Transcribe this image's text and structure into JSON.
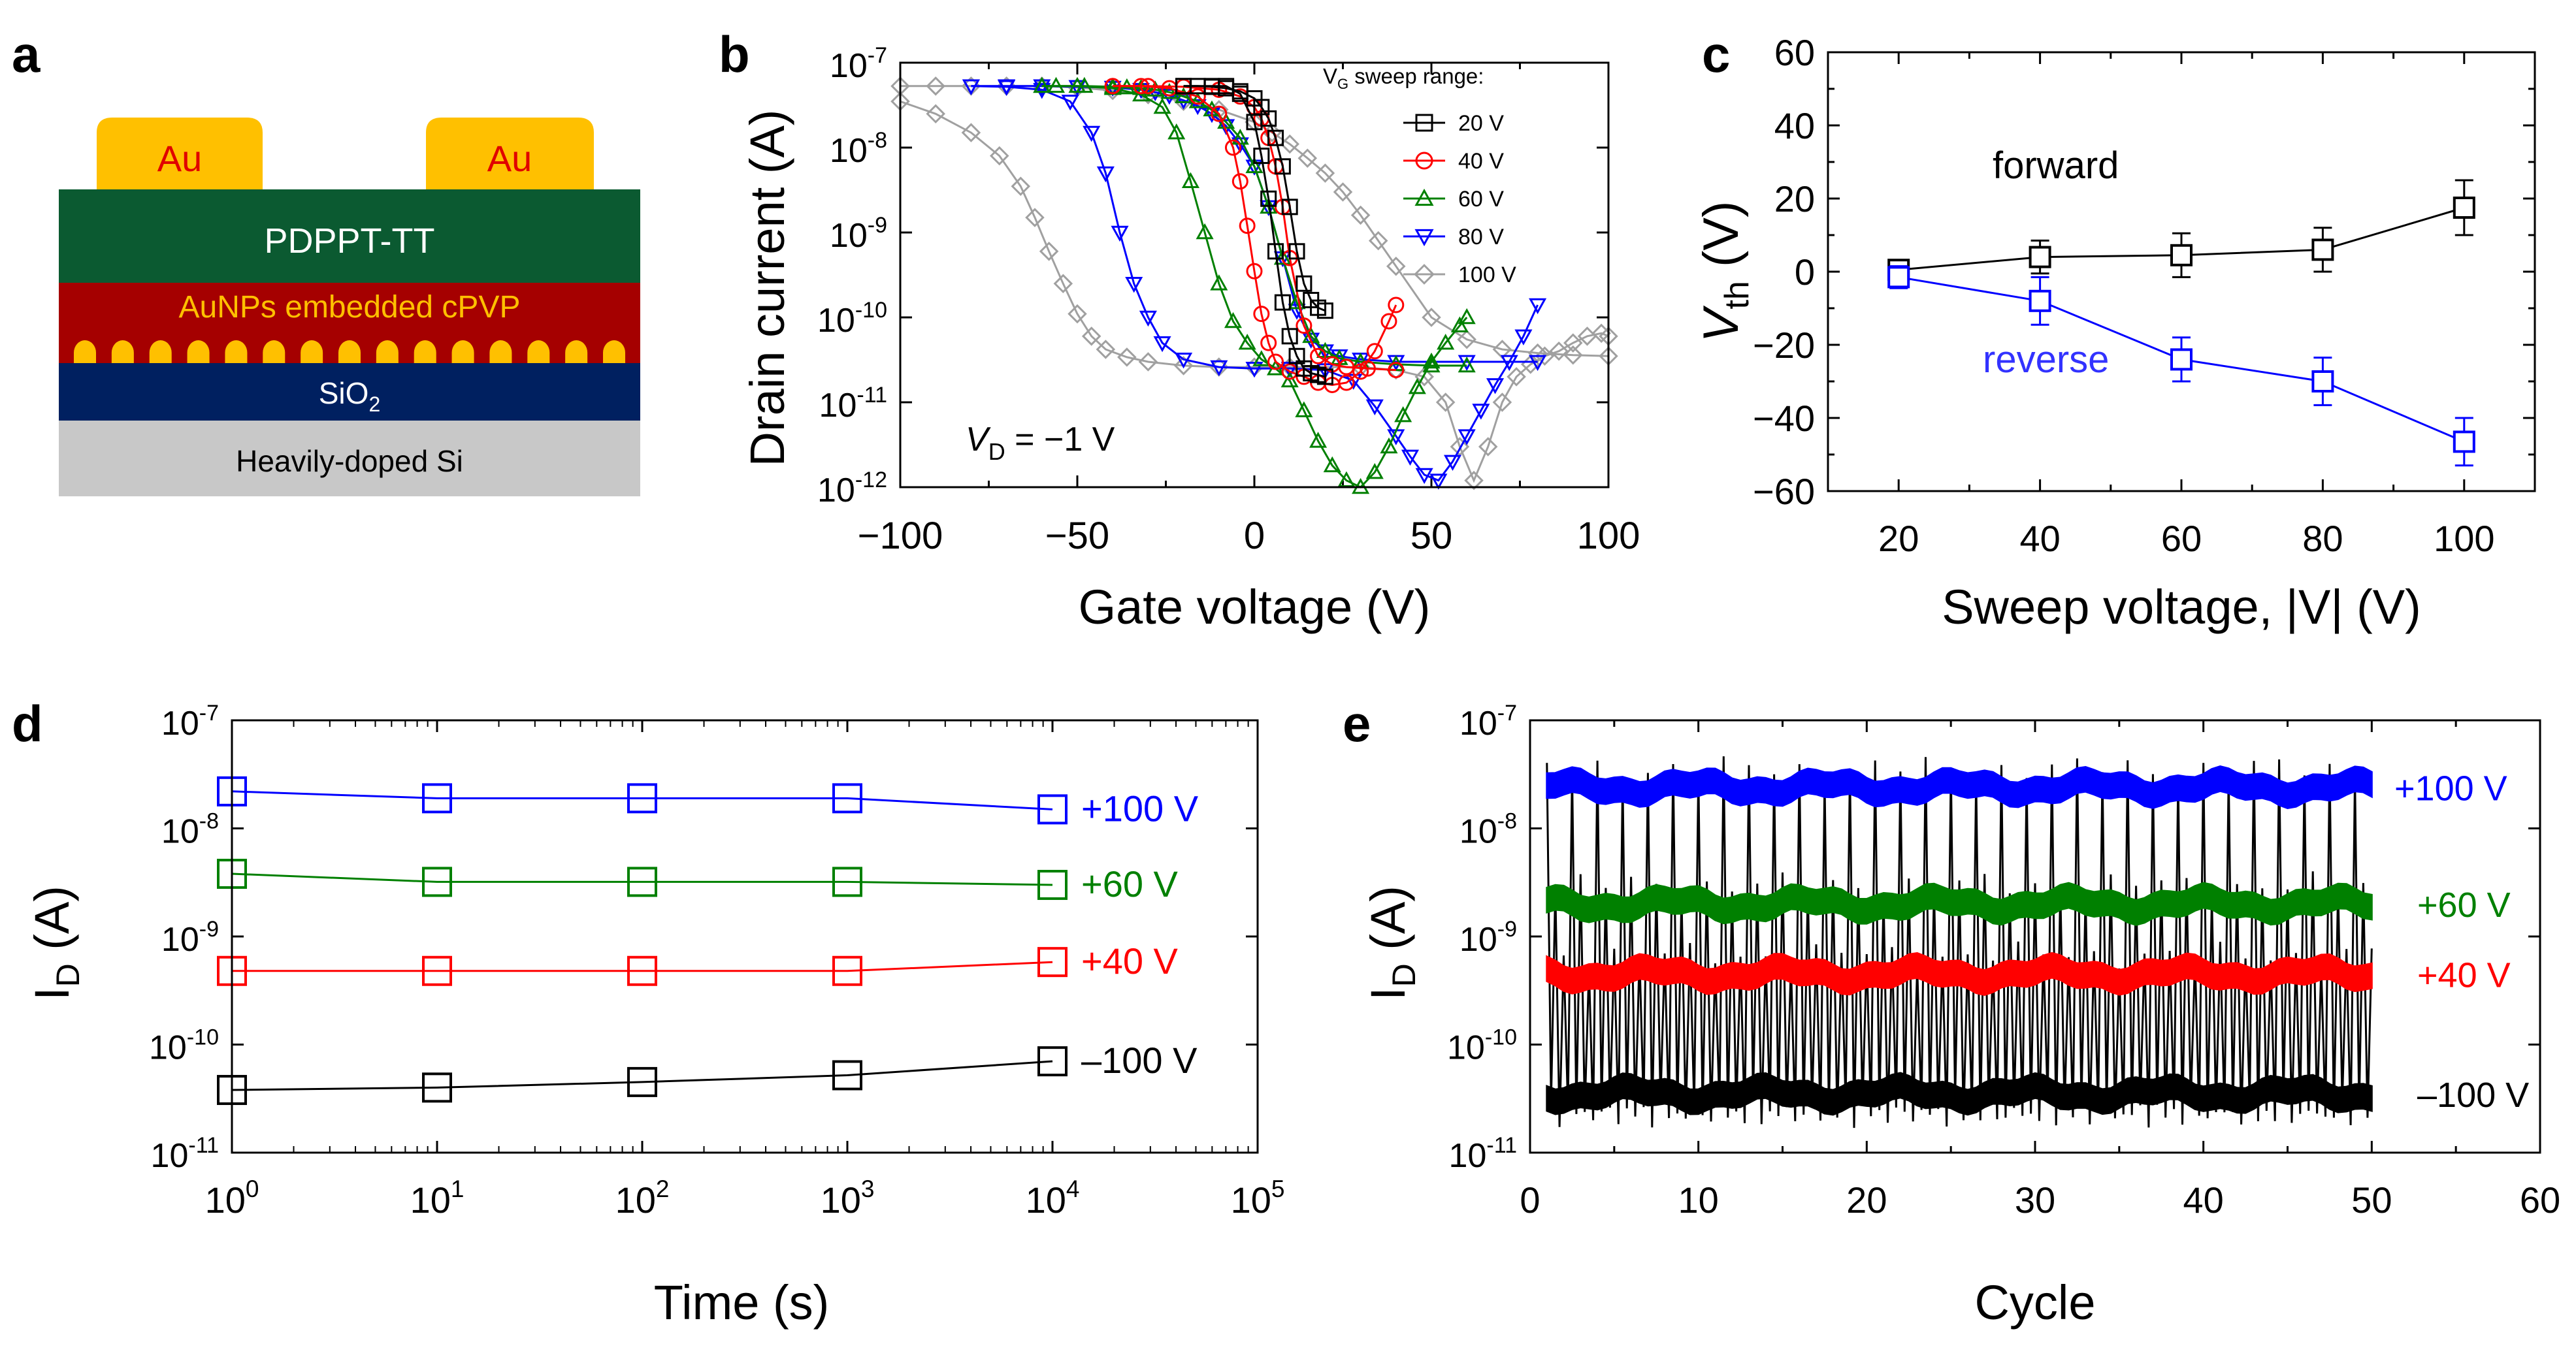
{
  "panels": {
    "a": {
      "letter": "a",
      "layers": {
        "electrode_left": "Au",
        "electrode_right": "Au",
        "semiconductor": "PDPPT-TT",
        "dielectric": "AuNPs embedded cPVP",
        "oxide_base": "SiO",
        "oxide_sub": "2",
        "substrate": "Heavily-doped Si"
      },
      "colors": {
        "au": "#ffc000",
        "au_text": "#e00000",
        "semiconductor": "#0b5a31",
        "semiconductor_text": "#ffffff",
        "dielectric": "#a50000",
        "dielectric_text": "#ffc000",
        "oxide": "#002060",
        "oxide_text": "#ffffff",
        "substrate": "#c8c8c8",
        "substrate_text": "#000000"
      },
      "nanoparticle_count": 15
    },
    "b": {
      "letter": "b"
    },
    "c": {
      "letter": "c"
    },
    "d": {
      "letter": "d"
    },
    "e": {
      "letter": "e"
    }
  },
  "chart_data": [
    {
      "panel": "b",
      "type": "line",
      "xlabel": "Gate voltage (V)",
      "ylabel": "Drain current (A)",
      "xlim": [
        -100,
        100
      ],
      "ylim": [
        1e-12,
        1e-07
      ],
      "yscale": "log",
      "xticks": [
        "-100",
        "-50",
        "0",
        "50",
        "100"
      ],
      "yticks": [
        {
          "base": "10",
          "exp": "-12"
        },
        {
          "base": "10",
          "exp": "-11"
        },
        {
          "base": "10",
          "exp": "-10"
        },
        {
          "base": "10",
          "exp": "-9"
        },
        {
          "base": "10",
          "exp": "-8"
        },
        {
          "base": "10",
          "exp": "-7"
        }
      ],
      "legend_title": {
        "main": "V",
        "sub": "G",
        "rest": " sweep range:"
      },
      "legend_position": "top-right",
      "annotation": {
        "italic": "V",
        "sub": "D",
        "rest": " = −1 V"
      },
      "series": [
        {
          "name": "20 V",
          "color": "#000000",
          "marker": "square",
          "forward": {
            "x": [
              -20,
              -12,
              -8,
              -4,
              0,
              2,
              4,
              6,
              8,
              10,
              12,
              14,
              16,
              18,
              20
            ],
            "y": [
              5.3e-08,
              5.3e-08,
              5.3e-08,
              4.3e-08,
              2e-08,
              8e-09,
              2.5e-09,
              6e-10,
              1.5e-10,
              6e-11,
              3.5e-11,
              2.5e-11,
              2.2e-11,
              2.1e-11,
              2e-11
            ]
          },
          "reverse": {
            "x": [
              20,
              18,
              16,
              14,
              12,
              10,
              8,
              6,
              4,
              2,
              0,
              -4,
              -8,
              -12,
              -16,
              -20
            ],
            "y": [
              1.2e-10,
              1.3e-10,
              1.6e-10,
              2.5e-10,
              6e-10,
              2e-09,
              6e-09,
              1.3e-08,
              2.2e-08,
              3e-08,
              3.8e-08,
              4.6e-08,
              5e-08,
              5.2e-08,
              5.3e-08,
              5.3e-08
            ]
          }
        },
        {
          "name": "40 V",
          "color": "#ff0000",
          "marker": "circle",
          "forward": {
            "x": [
              -40,
              -32,
              -24,
              -16,
              -10,
              -6,
              -4,
              -2,
              0,
              2,
              4,
              6,
              10,
              14,
              18,
              22,
              26,
              30,
              34,
              38,
              40
            ],
            "y": [
              5.3e-08,
              5.3e-08,
              5e-08,
              4e-08,
              2.5e-08,
              1e-08,
              4e-09,
              1.2e-09,
              3.5e-10,
              1.1e-10,
              5e-11,
              3e-11,
              2.3e-11,
              2e-11,
              1.7e-11,
              1.6e-11,
              1.7e-11,
              2.3e-11,
              4e-11,
              9e-11,
              1.4e-10
            ]
          },
          "reverse": {
            "x": [
              40,
              32,
              26,
              22,
              18,
              14,
              10,
              8,
              6,
              4,
              2,
              0,
              -4,
              -10,
              -20,
              -30,
              -40
            ],
            "y": [
              2.4e-11,
              2.5e-11,
              2.6e-11,
              2.8e-11,
              3.5e-11,
              8e-11,
              5e-10,
              2e-09,
              6e-09,
              1.3e-08,
              2.2e-08,
              3e-08,
              4e-08,
              4.8e-08,
              5.2e-08,
              5.3e-08,
              5.3e-08
            ]
          }
        },
        {
          "name": "60 V",
          "color": "#008000",
          "marker": "triangle-up",
          "forward": {
            "x": [
              -60,
              -50,
              -40,
              -32,
              -26,
              -22,
              -18,
              -14,
              -10,
              -6,
              -2,
              2,
              6,
              10,
              14,
              18,
              22,
              26,
              30,
              34,
              38,
              42,
              46,
              50,
              54,
              58,
              60
            ],
            "y": [
              5.3e-08,
              5.3e-08,
              5e-08,
              4.2e-08,
              3e-08,
              1.5e-08,
              4e-09,
              1e-09,
              2.5e-10,
              9e-11,
              5e-11,
              3.2e-11,
              2.5e-11,
              1.8e-11,
              8e-12,
              3.5e-12,
              1.8e-12,
              1.2e-12,
              1e-12,
              1.5e-12,
              3e-12,
              7e-12,
              1.5e-11,
              3e-11,
              5e-11,
              8e-11,
              1e-10
            ]
          },
          "reverse": {
            "x": [
              60,
              50,
              40,
              30,
              24,
              20,
              16,
              12,
              8,
              4,
              0,
              -4,
              -8,
              -12,
              -16,
              -20,
              -24,
              -28,
              -32,
              -36,
              -40,
              -48,
              -56,
              -60
            ],
            "y": [
              2.7e-11,
              2.7e-11,
              2.8e-11,
              3e-11,
              3.3e-11,
              4e-11,
              6e-11,
              1.5e-10,
              5e-10,
              2e-09,
              6e-09,
              1.3e-08,
              2e-08,
              2.8e-08,
              3.5e-08,
              4e-08,
              4.5e-08,
              4.8e-08,
              5e-08,
              5.1e-08,
              5.2e-08,
              5.3e-08,
              5.3e-08,
              5.3e-08
            ]
          }
        },
        {
          "name": "80 V",
          "color": "#0000ff",
          "marker": "triangle-down",
          "forward": {
            "x": [
              -80,
              -70,
              -60,
              -52,
              -46,
              -42,
              -38,
              -34,
              -30,
              -26,
              -20,
              -10,
              0,
              10,
              20,
              28,
              34,
              40,
              44,
              48,
              52,
              56,
              60,
              64,
              68,
              72,
              76,
              80
            ],
            "y": [
              5.3e-08,
              5.2e-08,
              4.8e-08,
              3.5e-08,
              1.5e-08,
              5e-09,
              1e-09,
              2.5e-10,
              1e-10,
              5e-11,
              3.2e-11,
              2.6e-11,
              2.5e-11,
              2.5e-11,
              2.4e-11,
              1.8e-11,
              9e-12,
              4e-12,
              2.3e-12,
              1.4e-12,
              1.2e-12,
              2e-12,
              4e-12,
              8e-12,
              1.6e-11,
              3e-11,
              6e-11,
              1.4e-10
            ]
          },
          "reverse": {
            "x": [
              80,
              60,
              40,
              30,
              24,
              20,
              16,
              12,
              8,
              4,
              0,
              -4,
              -8,
              -12,
              -16,
              -20,
              -24,
              -28,
              -32,
              -40,
              -50,
              -60,
              -70,
              -80
            ],
            "y": [
              3e-11,
              3e-11,
              3e-11,
              3.2e-11,
              3.5e-11,
              4e-11,
              5.5e-11,
              1.2e-10,
              5e-10,
              2e-09,
              6e-09,
              1.1e-08,
              1.8e-08,
              2.5e-08,
              3.1e-08,
              3.6e-08,
              4.1e-08,
              4.5e-08,
              4.8e-08,
              5.1e-08,
              5.2e-08,
              5.3e-08,
              5.3e-08,
              5.3e-08
            ]
          }
        },
        {
          "name": "100 V",
          "color": "#a0a0a0",
          "marker": "diamond",
          "forward": {
            "x": [
              -100,
              -90,
              -80,
              -72,
              -66,
              -62,
              -58,
              -54,
              -50,
              -46,
              -42,
              -36,
              -30,
              -20,
              -10,
              0,
              10,
              20,
              30,
              40,
              48,
              54,
              58,
              62,
              66,
              70,
              74,
              78,
              82,
              86,
              90,
              94,
              98,
              100
            ],
            "y": [
              3.5e-08,
              2.5e-08,
              1.5e-08,
              8e-09,
              3.5e-09,
              1.5e-09,
              6e-10,
              2.5e-10,
              1.1e-10,
              6e-11,
              4.2e-11,
              3.4e-11,
              3e-11,
              2.7e-11,
              2.6e-11,
              2.6e-11,
              2.6e-11,
              2.6e-11,
              2.6e-11,
              2.4e-11,
              2e-11,
              1e-11,
              3e-12,
              1.2e-12,
              3e-12,
              1e-11,
              2e-11,
              2.8e-11,
              3.5e-11,
              4e-11,
              5e-11,
              6e-11,
              6.5e-11,
              6e-11
            ]
          },
          "reverse": {
            "x": [
              100,
              90,
              80,
              70,
              60,
              50,
              40,
              35,
              30,
              25,
              20,
              15,
              10,
              5,
              0,
              -10,
              -20,
              -30,
              -40,
              -50,
              -60,
              -70,
              -80,
              -90,
              -100
            ],
            "y": [
              3.5e-11,
              3.6e-11,
              3.8e-11,
              4.2e-11,
              5.5e-11,
              1e-10,
              4e-10,
              8e-10,
              1.6e-09,
              3e-09,
              5e-09,
              7.5e-09,
              1.1e-08,
              1.5e-08,
              2e-08,
              2.8e-08,
              3.5e-08,
              4.2e-08,
              4.7e-08,
              5.1e-08,
              5.3e-08,
              5.3e-08,
              5.3e-08,
              5.3e-08,
              5.3e-08
            ]
          }
        }
      ]
    },
    {
      "panel": "c",
      "type": "line",
      "xlabel": "Sweep voltage, |V| (V)",
      "ylabel": {
        "italic": "V",
        "sub": "th",
        "rest": " (V)"
      },
      "xlim": [
        10,
        110
      ],
      "ylim": [
        -60,
        60
      ],
      "xticks": [
        "20",
        "40",
        "60",
        "80",
        "100"
      ],
      "yticks": [
        "-60",
        "-40",
        "-20",
        "0",
        "20",
        "40",
        "60"
      ],
      "series": [
        {
          "name": "forward",
          "color": "#000000",
          "label_color": "#000000",
          "x": [
            20,
            40,
            60,
            80,
            100
          ],
          "y": [
            0.5,
            4,
            4.5,
            6,
            17.5
          ],
          "err": [
            1.5,
            4.5,
            6,
            6,
            7.5
          ]
        },
        {
          "name": "reverse",
          "color": "#0000ff",
          "label_color": "#3232ff",
          "x": [
            20,
            40,
            60,
            80,
            100
          ],
          "y": [
            -1.5,
            -8,
            -24,
            -30,
            -46.5
          ],
          "err": [
            3,
            6.5,
            6,
            6.5,
            6.5
          ]
        }
      ]
    },
    {
      "panel": "d",
      "type": "scatter",
      "xlabel": "Time (s)",
      "ylabel": {
        "main": "I",
        "sub": "D",
        "rest": " (A)"
      },
      "xscale": "log",
      "yscale": "log",
      "xlim": [
        1,
        100000
      ],
      "ylim": [
        1e-11,
        1e-07
      ],
      "xticks": [
        {
          "base": "10",
          "exp": "0"
        },
        {
          "base": "10",
          "exp": "1"
        },
        {
          "base": "10",
          "exp": "2"
        },
        {
          "base": "10",
          "exp": "3"
        },
        {
          "base": "10",
          "exp": "4"
        },
        {
          "base": "10",
          "exp": "5"
        }
      ],
      "yticks": [
        {
          "base": "10",
          "exp": "-11"
        },
        {
          "base": "10",
          "exp": "-10"
        },
        {
          "base": "10",
          "exp": "-9"
        },
        {
          "base": "10",
          "exp": "-8"
        },
        {
          "base": "10",
          "exp": "-7"
        }
      ],
      "series": [
        {
          "name": "+100 V",
          "color": "#0000ff",
          "x": [
            1,
            10,
            100,
            1000,
            10000
          ],
          "y": [
            2.2e-08,
            1.9e-08,
            1.9e-08,
            1.9e-08,
            1.5e-08
          ]
        },
        {
          "name": "+60 V",
          "color": "#008000",
          "x": [
            1,
            10,
            100,
            1000,
            10000
          ],
          "y": [
            3.8e-09,
            3.2e-09,
            3.2e-09,
            3.2e-09,
            3e-09
          ]
        },
        {
          "name": "+40 V",
          "color": "#ff0000",
          "x": [
            1,
            10,
            100,
            1000,
            10000
          ],
          "y": [
            4.8e-10,
            4.8e-10,
            4.8e-10,
            4.8e-10,
            5.8e-10
          ]
        },
        {
          "name": "–100 V",
          "color": "#000000",
          "x": [
            1,
            10,
            100,
            1000,
            10000
          ],
          "y": [
            3.8e-11,
            4e-11,
            4.5e-11,
            5.2e-11,
            7e-11
          ]
        }
      ]
    },
    {
      "panel": "e",
      "type": "line",
      "xlabel": "Cycle",
      "ylabel": {
        "main": "I",
        "sub": "D",
        "rest": " (A)"
      },
      "yscale": "log",
      "xlim": [
        0,
        60
      ],
      "ylim": [
        1e-11,
        1e-07
      ],
      "xticks": [
        "0",
        "10",
        "20",
        "30",
        "40",
        "50",
        "60"
      ],
      "yticks": [
        {
          "base": "10",
          "exp": "-11"
        },
        {
          "base": "10",
          "exp": "-10"
        },
        {
          "base": "10",
          "exp": "-9"
        },
        {
          "base": "10",
          "exp": "-8"
        },
        {
          "base": "10",
          "exp": "-7"
        }
      ],
      "cycles": [
        1,
        50
      ],
      "switch_color": "#000000",
      "series": [
        {
          "name": "+100 V",
          "color": "#0000ff",
          "level": 2.4e-08,
          "band": 1.3
        },
        {
          "name": "+60 V",
          "color": "#008000",
          "level": 2e-09,
          "band": 1.3
        },
        {
          "name": "+40 V",
          "color": "#ff0000",
          "level": 4.5e-10,
          "band": 1.3
        },
        {
          "name": "–100 V",
          "color": "#000000",
          "level": 3.5e-11,
          "band": 1.3
        }
      ]
    }
  ]
}
